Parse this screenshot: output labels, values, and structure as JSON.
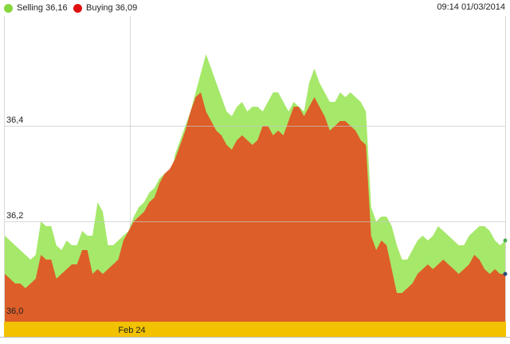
{
  "colors": {
    "selling": "#a6e86a",
    "buying": "#dd5e28",
    "date_band": "#f2c200",
    "grid": "#d9d9d9"
  },
  "legend": {
    "selling_label": "Selling 36,16",
    "buying_label": "Buying 36,09"
  },
  "timestamp": "09:14 01/03/2014",
  "chart_data": {
    "type": "area",
    "ylim": [
      35.99,
      36.63
    ],
    "yticks": [
      {
        "value": 36.0,
        "label": "36,0"
      },
      {
        "value": 36.2,
        "label": "36,2"
      },
      {
        "value": 36.4,
        "label": "36,4"
      }
    ],
    "x_labels": [
      {
        "index": 22,
        "label": "Feb 24"
      }
    ],
    "series": [
      {
        "name": "Selling",
        "values": [
          36.17,
          36.16,
          36.15,
          36.14,
          36.13,
          36.12,
          36.13,
          36.2,
          36.19,
          36.19,
          36.15,
          36.14,
          36.16,
          36.15,
          36.15,
          36.18,
          36.17,
          36.17,
          36.24,
          36.22,
          36.15,
          36.15,
          36.16,
          36.17,
          36.18,
          36.21,
          36.23,
          36.24,
          36.26,
          36.27,
          36.29,
          36.3,
          36.28,
          36.34,
          36.37,
          36.4,
          36.43,
          36.47,
          36.51,
          36.55,
          36.52,
          36.49,
          36.46,
          36.43,
          36.42,
          36.44,
          36.45,
          36.43,
          36.44,
          36.44,
          36.43,
          36.45,
          36.47,
          36.47,
          36.45,
          36.43,
          36.45,
          36.44,
          36.43,
          36.49,
          36.52,
          36.49,
          36.47,
          36.45,
          36.45,
          36.47,
          36.46,
          36.47,
          36.46,
          36.45,
          36.43,
          36.23,
          36.2,
          36.21,
          36.21,
          36.19,
          36.15,
          36.12,
          36.12,
          36.14,
          36.16,
          36.17,
          36.16,
          36.17,
          36.19,
          36.18,
          36.17,
          36.16,
          36.15,
          36.15,
          36.17,
          36.18,
          36.19,
          36.19,
          36.18,
          36.16,
          36.15,
          36.16
        ]
      },
      {
        "name": "Buying",
        "values": [
          36.09,
          36.08,
          36.07,
          36.07,
          36.06,
          36.07,
          36.08,
          36.13,
          36.12,
          36.12,
          36.08,
          36.09,
          36.1,
          36.11,
          36.11,
          36.14,
          36.14,
          36.09,
          36.1,
          36.09,
          36.1,
          36.11,
          36.12,
          36.16,
          36.18,
          36.2,
          36.21,
          36.22,
          36.24,
          36.25,
          36.28,
          36.3,
          36.31,
          36.33,
          36.36,
          36.39,
          36.43,
          36.46,
          36.47,
          36.43,
          36.41,
          36.39,
          36.38,
          36.36,
          36.35,
          36.37,
          36.38,
          36.37,
          36.36,
          36.37,
          36.4,
          36.4,
          36.38,
          36.39,
          36.38,
          36.41,
          36.44,
          36.44,
          36.42,
          36.44,
          36.46,
          36.44,
          36.42,
          36.39,
          36.4,
          36.41,
          36.41,
          36.4,
          36.39,
          36.37,
          36.36,
          36.17,
          36.14,
          36.16,
          36.15,
          36.1,
          36.05,
          36.05,
          36.06,
          36.07,
          36.09,
          36.1,
          36.11,
          36.1,
          36.11,
          36.12,
          36.11,
          36.1,
          36.09,
          36.1,
          36.11,
          36.13,
          36.12,
          36.1,
          36.09,
          36.1,
          36.09,
          36.09
        ]
      }
    ]
  }
}
